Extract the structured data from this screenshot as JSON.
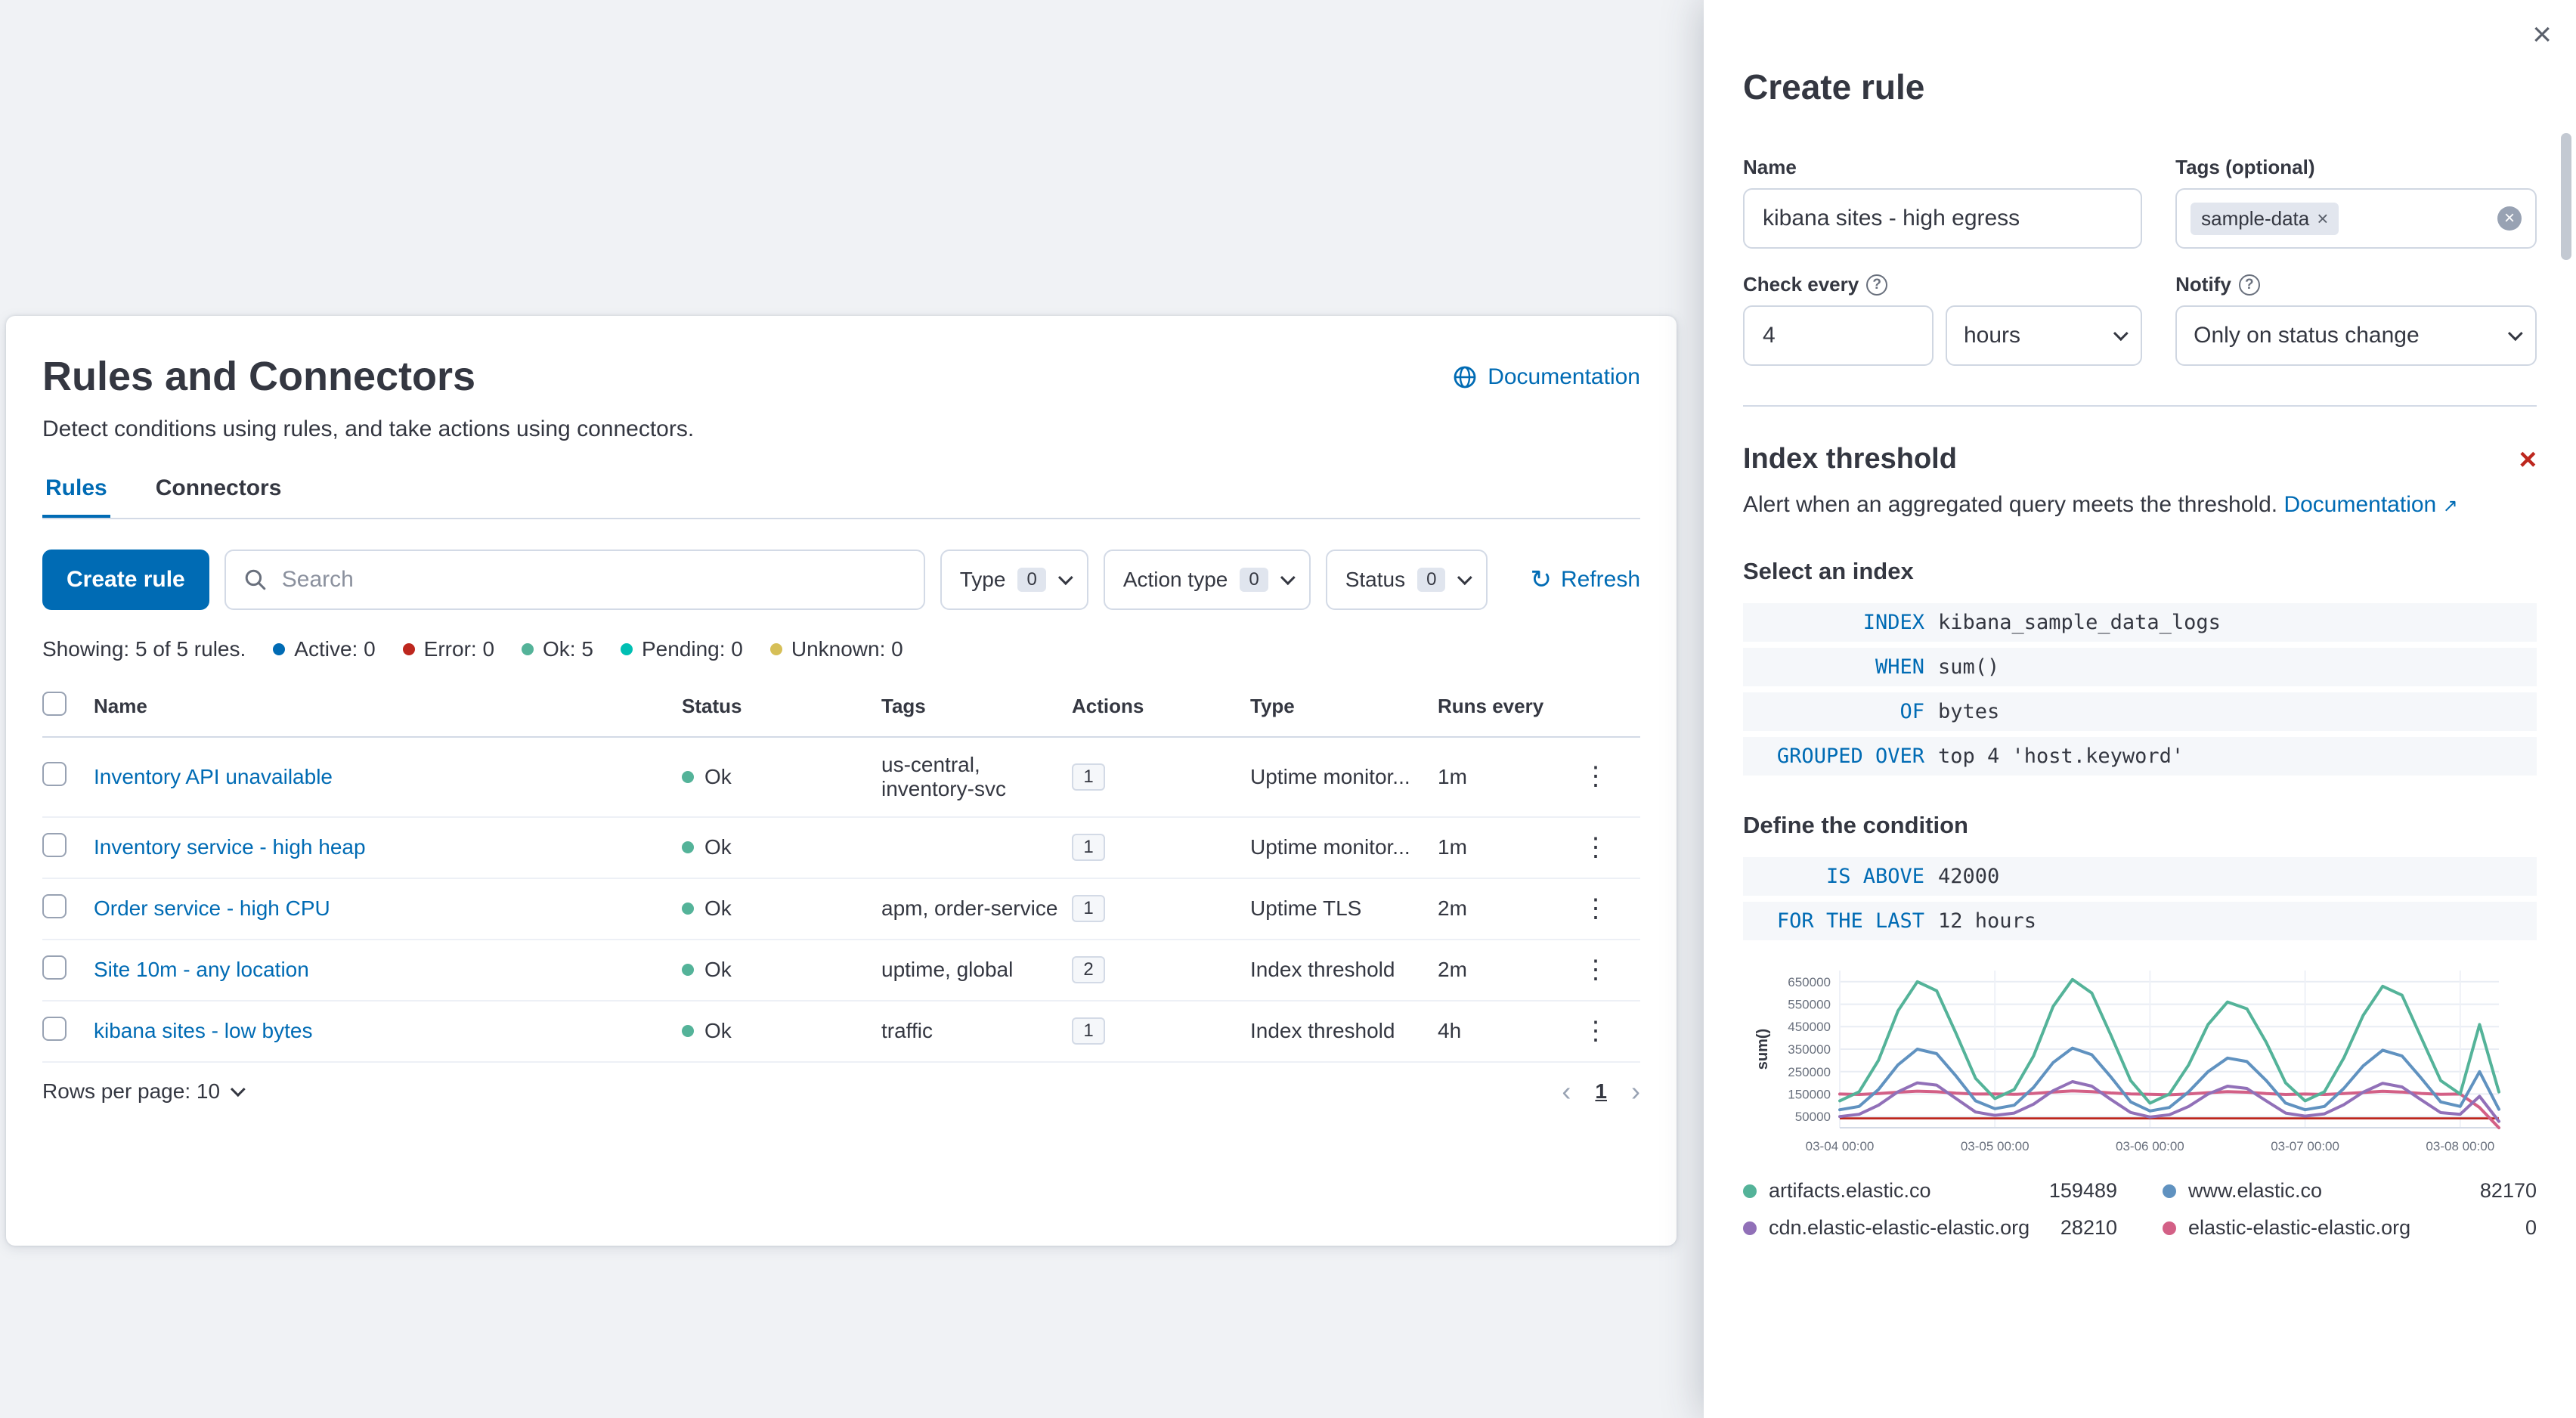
{
  "page": {
    "title": "Rules and Connectors",
    "subtitle": "Detect conditions using rules, and take actions using connectors.",
    "documentation_link": "Documentation",
    "tabs": [
      {
        "label": "Rules"
      },
      {
        "label": "Connectors"
      }
    ],
    "toolbar": {
      "create_rule": "Create rule",
      "search_placeholder": "Search",
      "filters": [
        {
          "label": "Type",
          "count": "0"
        },
        {
          "label": "Action type",
          "count": "0"
        },
        {
          "label": "Status",
          "count": "0"
        }
      ],
      "refresh": "Refresh"
    },
    "stats": {
      "showing": "Showing: 5 of 5 rules.",
      "items": [
        {
          "label": "Active: 0",
          "color": "#006BB4"
        },
        {
          "label": "Error: 0",
          "color": "#BD271E"
        },
        {
          "label": "Ok: 5",
          "color": "#54B399"
        },
        {
          "label": "Pending: 0",
          "color": "#00BFB3"
        },
        {
          "label": "Unknown: 0",
          "color": "#D6BF57"
        }
      ]
    },
    "table": {
      "headers": {
        "name": "Name",
        "status": "Status",
        "tags": "Tags",
        "actions": "Actions",
        "type": "Type",
        "runs_every": "Runs every"
      },
      "status_dot_color": "#54B399",
      "rows": [
        {
          "name": "Inventory API unavailable",
          "status": "Ok",
          "tags": "us-central, inventory-svc",
          "actions": "1",
          "type": "Uptime monitor...",
          "runs_every": "1m"
        },
        {
          "name": "Inventory service - high heap",
          "status": "Ok",
          "tags": "",
          "actions": "1",
          "type": "Uptime monitor...",
          "runs_every": "1m"
        },
        {
          "name": "Order service - high CPU",
          "status": "Ok",
          "tags": "apm, order-service",
          "actions": "1",
          "type": "Uptime TLS",
          "runs_every": "2m"
        },
        {
          "name": "Site 10m - any location",
          "status": "Ok",
          "tags": "uptime, global",
          "actions": "2",
          "type": "Index threshold",
          "runs_every": "2m"
        },
        {
          "name": "kibana sites - low bytes",
          "status": "Ok",
          "tags": "traffic",
          "actions": "1",
          "type": "Index threshold",
          "runs_every": "4h"
        }
      ],
      "rows_per_page": "Rows per page: 10",
      "page_number": "1"
    }
  },
  "flyout": {
    "title": "Create rule",
    "form": {
      "name_label": "Name",
      "name_value": "kibana sites - high egress",
      "tags_label": "Tags (optional)",
      "tag_pill": "sample-data",
      "check_every_label": "Check every",
      "check_every_value": "4",
      "check_every_unit": "hours",
      "notify_label": "Notify",
      "notify_value": "Only on status change"
    },
    "rule_type": {
      "title": "Index threshold",
      "description": "Alert when an aggregated query meets the threshold.",
      "documentation_link": "Documentation"
    },
    "select_index_label": "Select an index",
    "index_expressions": [
      {
        "keyword": "INDEX",
        "value": "kibana_sample_data_logs"
      },
      {
        "keyword": "WHEN",
        "value": "sum()"
      },
      {
        "keyword": "OF",
        "value": "bytes"
      },
      {
        "keyword": "GROUPED OVER",
        "value": "top 4 'host.keyword'"
      }
    ],
    "condition_label": "Define the condition",
    "condition_expressions": [
      {
        "keyword": "IS ABOVE",
        "value": "42000"
      },
      {
        "keyword": "FOR THE LAST",
        "value": "12 hours"
      }
    ]
  },
  "chart_data": {
    "type": "line",
    "title": "",
    "ylabel": "sum()",
    "ylim": [
      0,
      700000
    ],
    "yticks": [
      650000,
      550000,
      450000,
      350000,
      250000,
      150000,
      50000
    ],
    "xticks": [
      "03-04 00:00",
      "03-05 00:00",
      "03-06 00:00",
      "03-07 00:00",
      "03-08 00:00"
    ],
    "xtick_indices": [
      0,
      8,
      16,
      24,
      32
    ],
    "x_step_hours": 3,
    "grid": true,
    "legend_position": "bottom",
    "threshold": 42000,
    "threshold_color": "#BD271E",
    "series": [
      {
        "name": "artifacts.elastic.co",
        "color": "#54B399",
        "latest": "159489",
        "values": [
          120000,
          160000,
          300000,
          520000,
          650000,
          610000,
          420000,
          220000,
          130000,
          170000,
          320000,
          540000,
          660000,
          600000,
          410000,
          210000,
          110000,
          150000,
          280000,
          460000,
          560000,
          530000,
          380000,
          200000,
          120000,
          160000,
          310000,
          500000,
          630000,
          590000,
          400000,
          210000,
          150000,
          460000,
          159489
        ]
      },
      {
        "name": "www.elastic.co",
        "color": "#6092C0",
        "latest": "82170",
        "values": [
          80000,
          95000,
          170000,
          280000,
          350000,
          330000,
          230000,
          120000,
          85000,
          100000,
          180000,
          290000,
          355000,
          325000,
          225000,
          115000,
          75000,
          90000,
          160000,
          250000,
          310000,
          295000,
          210000,
          110000,
          80000,
          95000,
          175000,
          275000,
          345000,
          320000,
          220000,
          115000,
          95000,
          250000,
          82170
        ]
      },
      {
        "name": "cdn.elastic-elastic-elastic.org",
        "color": "#9170B8",
        "latest": "28210",
        "values": [
          50000,
          60000,
          100000,
          160000,
          200000,
          190000,
          130000,
          70000,
          55000,
          65000,
          105000,
          165000,
          205000,
          185000,
          125000,
          68000,
          48000,
          58000,
          95000,
          150000,
          185000,
          175000,
          120000,
          65000,
          52000,
          62000,
          102000,
          158000,
          198000,
          182000,
          124000,
          67000,
          60000,
          140000,
          28210
        ]
      },
      {
        "name": "elastic-elastic-elastic.org",
        "color": "#D36086",
        "latest": "0",
        "values": [
          150000,
          148000,
          152000,
          158000,
          163000,
          160000,
          154000,
          150000,
          151000,
          149000,
          153000,
          159000,
          164000,
          161000,
          155000,
          151000,
          149000,
          147000,
          151000,
          156000,
          161000,
          158000,
          152000,
          148000,
          150000,
          148000,
          152000,
          157000,
          162000,
          159000,
          153000,
          149000,
          150000,
          90000,
          0
        ]
      }
    ]
  }
}
